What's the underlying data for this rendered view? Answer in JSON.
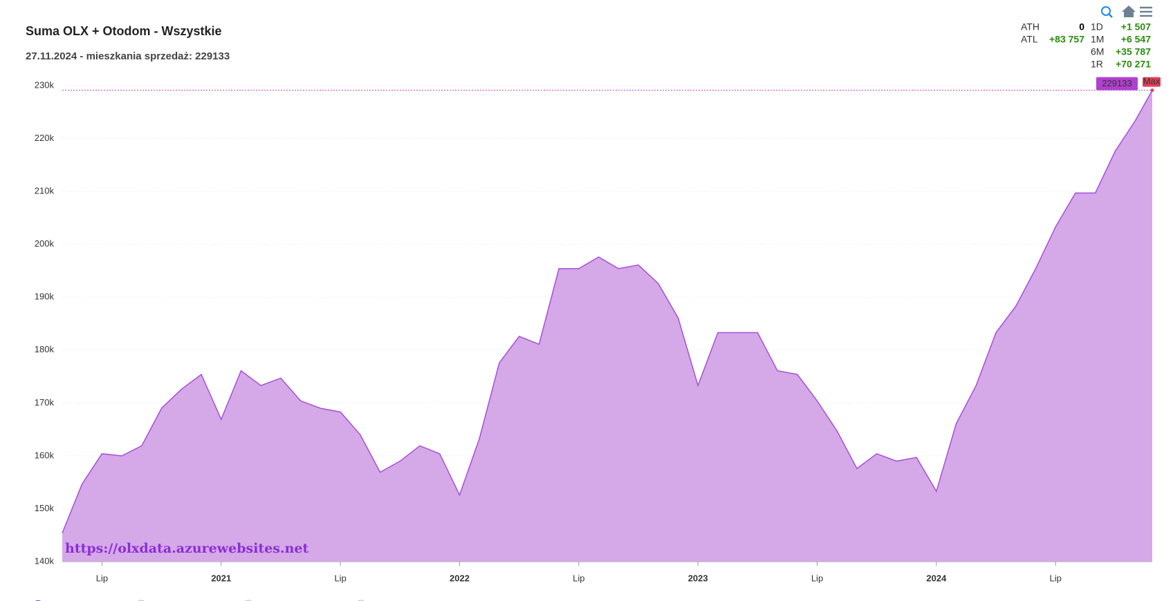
{
  "chart_data": {
    "type": "area",
    "title": "Suma OLX + Otodom - Wszystkie",
    "subtitle": "27.11.2024 - mieszkania sprzedaż: 229133",
    "watermark": "https://olxdata.azurewebsites.net",
    "annotation": "Max",
    "x": [
      "2020-05",
      "2020-06",
      "2020-07",
      "2020-08",
      "2020-09",
      "2020-10",
      "2020-11",
      "2020-12",
      "2021-01",
      "2021-02",
      "2021-03",
      "2021-04",
      "2021-05",
      "2021-06",
      "2021-07",
      "2021-08",
      "2021-09",
      "2021-10",
      "2021-11",
      "2021-12",
      "2022-01",
      "2022-02",
      "2022-03",
      "2022-04",
      "2022-05",
      "2022-06",
      "2022-07",
      "2022-08",
      "2022-09",
      "2022-10",
      "2022-11",
      "2022-12",
      "2023-01",
      "2023-02",
      "2023-03",
      "2023-04",
      "2023-05",
      "2023-06",
      "2023-07",
      "2023-08",
      "2023-09",
      "2023-10",
      "2023-11",
      "2023-12",
      "2024-01",
      "2024-02",
      "2024-03",
      "2024-04",
      "2024-05",
      "2024-06",
      "2024-07",
      "2024-08",
      "2024-09",
      "2024-10",
      "2024-11",
      "2024-11-27"
    ],
    "series": [
      {
        "name": "mieszkania sprzedaż",
        "color": "#a64fd6",
        "fill": "#d5a8e8",
        "values": [
          145400,
          154700,
          160400,
          160000,
          161900,
          169000,
          172600,
          175400,
          166900,
          176100,
          173300,
          174700,
          170400,
          169000,
          168300,
          164000,
          156900,
          159000,
          161900,
          160400,
          152600,
          163300,
          177600,
          182600,
          181100,
          195400,
          195400,
          197600,
          195400,
          196100,
          192600,
          186100,
          173300,
          183300,
          183300,
          183300,
          176100,
          175400,
          170400,
          164700,
          157600,
          160400,
          159000,
          159700,
          153300,
          166100,
          173300,
          183300,
          188300,
          195400,
          203300,
          209700,
          209700,
          217600,
          223300,
          229133
        ]
      }
    ],
    "xlim": [
      "2020-05",
      "2024-11-27"
    ],
    "ylim": [
      140000,
      230000
    ],
    "yticks": [
      {
        "value": 140000,
        "label": "140k"
      },
      {
        "value": 150000,
        "label": "150k"
      },
      {
        "value": 160000,
        "label": "160k"
      },
      {
        "value": 170000,
        "label": "170k"
      },
      {
        "value": 180000,
        "label": "180k"
      },
      {
        "value": 190000,
        "label": "190k"
      },
      {
        "value": 200000,
        "label": "200k"
      },
      {
        "value": 210000,
        "label": "210k"
      },
      {
        "value": 220000,
        "label": "220k"
      },
      {
        "value": 230000,
        "label": "230k"
      }
    ],
    "xticks": [
      {
        "value": "2020-07",
        "label": "Lip"
      },
      {
        "value": "2021-01",
        "label": "2021"
      },
      {
        "value": "2021-07",
        "label": "Lip"
      },
      {
        "value": "2022-01",
        "label": "2022"
      },
      {
        "value": "2022-07",
        "label": "Lip"
      },
      {
        "value": "2023-01",
        "label": "2023"
      },
      {
        "value": "2023-07",
        "label": "Lip"
      },
      {
        "value": "2024-01",
        "label": "2024"
      },
      {
        "value": "2024-07",
        "label": "Lip"
      }
    ],
    "grid": true,
    "stats": [
      [
        "ATH",
        "0",
        "1D",
        "+1 507"
      ],
      [
        "ATL",
        "+83 757",
        "1M",
        "+6 547"
      ],
      [
        null,
        null,
        "6M",
        "+35 787"
      ],
      [
        null,
        null,
        "1R",
        "+70 271"
      ]
    ]
  }
}
